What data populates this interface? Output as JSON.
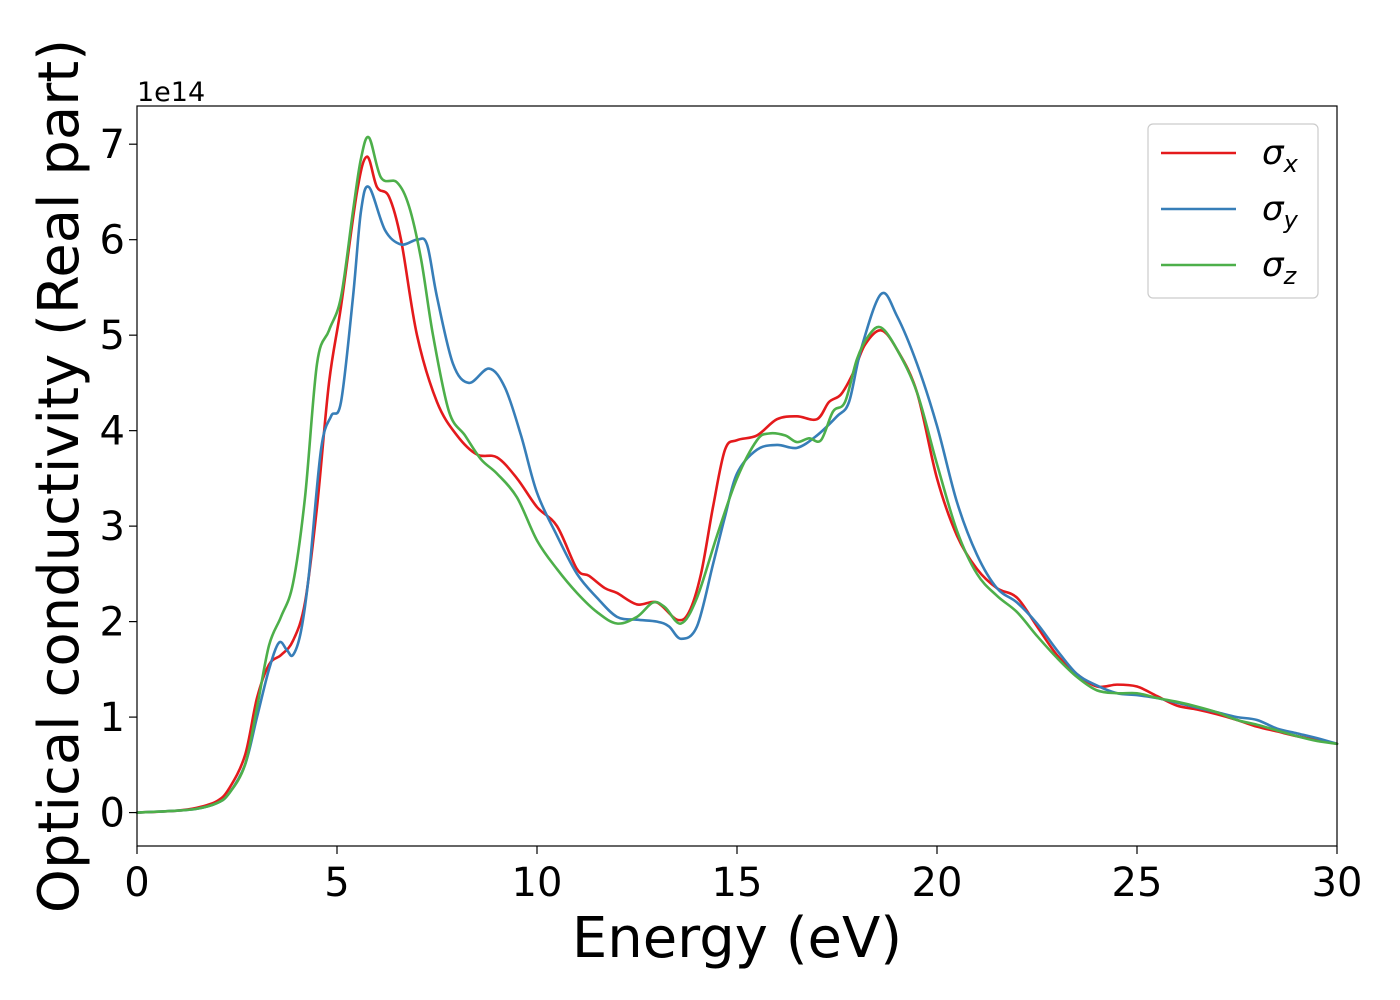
{
  "chart_data": {
    "type": "line",
    "xlabel": "Energy (eV)",
    "ylabel": "Optical conductivity (Real part)",
    "y_offset_label": "1e14",
    "xlim": [
      0,
      30
    ],
    "ylim": [
      -0.35,
      7.4
    ],
    "x_ticks": [
      0,
      5,
      10,
      15,
      20,
      25,
      30
    ],
    "y_ticks": [
      0,
      1,
      2,
      3,
      4,
      5,
      6,
      7
    ],
    "x_tick_labels": [
      "0",
      "5",
      "10",
      "15",
      "20",
      "25",
      "30"
    ],
    "y_tick_labels": [
      "0",
      "1",
      "2",
      "3",
      "4",
      "5",
      "6",
      "7"
    ],
    "grid": false,
    "legend_position": "top-right",
    "series": [
      {
        "name": "σx",
        "symbol": "σ",
        "subscript": "x",
        "color": "#e41a1c",
        "x": [
          0,
          1,
          1.5,
          2,
          2.3,
          2.7,
          3,
          3.3,
          3.6,
          3.9,
          4.2,
          4.5,
          4.8,
          5.1,
          5.5,
          5.75,
          6,
          6.3,
          6.6,
          7,
          7.5,
          8,
          8.5,
          9,
          9.5,
          10,
          10.5,
          11,
          11.3,
          11.7,
          12,
          12.5,
          13,
          13.5,
          13.8,
          14.1,
          14.4,
          14.7,
          15,
          15.5,
          16,
          16.5,
          17,
          17.3,
          17.6,
          17.9,
          18.2,
          18.6,
          19,
          19.5,
          20,
          20.5,
          21,
          21.5,
          22,
          22.5,
          23,
          23.5,
          24,
          24.5,
          25,
          25.5,
          26,
          26.5,
          27,
          27.5,
          28,
          28.5,
          29,
          29.5,
          30
        ],
        "y": [
          0,
          0.02,
          0.05,
          0.12,
          0.25,
          0.6,
          1.2,
          1.55,
          1.65,
          1.8,
          2.2,
          3.2,
          4.5,
          5.3,
          6.5,
          6.87,
          6.55,
          6.45,
          6.0,
          5.0,
          4.3,
          3.95,
          3.75,
          3.72,
          3.5,
          3.2,
          3.0,
          2.55,
          2.48,
          2.35,
          2.3,
          2.18,
          2.2,
          2.02,
          2.1,
          2.5,
          3.2,
          3.8,
          3.9,
          3.95,
          4.12,
          4.15,
          4.12,
          4.3,
          4.38,
          4.6,
          4.9,
          5.05,
          4.85,
          4.4,
          3.5,
          2.9,
          2.55,
          2.35,
          2.25,
          1.95,
          1.65,
          1.45,
          1.32,
          1.34,
          1.32,
          1.22,
          1.12,
          1.08,
          1.03,
          0.97,
          0.9,
          0.85,
          0.8,
          0.76,
          0.72
        ]
      },
      {
        "name": "σy",
        "symbol": "σ",
        "subscript": "y",
        "color": "#377eb8",
        "x": [
          0,
          1,
          1.5,
          2,
          2.3,
          2.7,
          3,
          3.3,
          3.55,
          3.75,
          3.9,
          4.1,
          4.3,
          4.6,
          4.85,
          5.1,
          5.4,
          5.6,
          5.8,
          6.2,
          6.6,
          7,
          7.25,
          7.5,
          7.9,
          8.3,
          8.8,
          9.2,
          9.6,
          10,
          10.5,
          11,
          11.5,
          12,
          12.5,
          13,
          13.3,
          13.6,
          14,
          14.4,
          14.7,
          15,
          15.5,
          16,
          16.5,
          17,
          17.5,
          17.8,
          18.1,
          18.6,
          19,
          19.5,
          20,
          20.5,
          21,
          21.5,
          22,
          22.5,
          23,
          23.5,
          24,
          24.5,
          25,
          25.5,
          26,
          26.5,
          27,
          27.5,
          28,
          28.5,
          29,
          29.5,
          30
        ],
        "y": [
          0,
          0.02,
          0.04,
          0.1,
          0.2,
          0.5,
          1.0,
          1.5,
          1.78,
          1.7,
          1.65,
          1.9,
          2.5,
          3.8,
          4.15,
          4.3,
          5.4,
          6.3,
          6.55,
          6.1,
          5.95,
          6.0,
          5.95,
          5.4,
          4.7,
          4.5,
          4.65,
          4.45,
          3.95,
          3.35,
          2.9,
          2.5,
          2.25,
          2.05,
          2.02,
          2.0,
          1.95,
          1.82,
          1.95,
          2.6,
          3.1,
          3.55,
          3.8,
          3.85,
          3.82,
          3.95,
          4.15,
          4.3,
          4.85,
          5.43,
          5.2,
          4.7,
          4.05,
          3.25,
          2.7,
          2.35,
          2.2,
          1.98,
          1.7,
          1.45,
          1.33,
          1.25,
          1.23,
          1.2,
          1.15,
          1.1,
          1.05,
          1.0,
          0.97,
          0.88,
          0.83,
          0.78,
          0.72
        ]
      },
      {
        "name": "σz",
        "symbol": "σ",
        "subscript": "z",
        "color": "#4daf4a",
        "x": [
          0,
          1,
          1.5,
          2,
          2.3,
          2.7,
          3,
          3.3,
          3.6,
          3.9,
          4.2,
          4.5,
          4.8,
          5.1,
          5.4,
          5.6,
          5.8,
          6.1,
          6.5,
          6.8,
          7.1,
          7.4,
          7.8,
          8.2,
          8.6,
          9,
          9.5,
          10,
          10.5,
          11,
          11.5,
          12,
          12.5,
          12.9,
          13.2,
          13.6,
          14,
          14.5,
          15,
          15.5,
          15.8,
          16.2,
          16.5,
          16.8,
          17.1,
          17.4,
          17.7,
          18,
          18.3,
          18.6,
          19,
          19.5,
          20,
          20.5,
          21,
          21.5,
          22,
          22.5,
          23,
          23.5,
          24,
          24.5,
          25,
          25.5,
          26,
          26.5,
          27,
          27.5,
          28,
          28.5,
          29,
          29.5,
          30
        ],
        "y": [
          0,
          0.02,
          0.04,
          0.1,
          0.2,
          0.5,
          1.1,
          1.75,
          2.05,
          2.4,
          3.3,
          4.7,
          5.05,
          5.4,
          6.3,
          6.85,
          7.07,
          6.65,
          6.6,
          6.35,
          5.8,
          5.0,
          4.2,
          3.95,
          3.7,
          3.55,
          3.3,
          2.85,
          2.55,
          2.3,
          2.1,
          1.98,
          2.05,
          2.2,
          2.15,
          1.98,
          2.25,
          2.9,
          3.5,
          3.9,
          3.97,
          3.95,
          3.88,
          3.92,
          3.9,
          4.2,
          4.3,
          4.75,
          5.0,
          5.08,
          4.85,
          4.4,
          3.65,
          2.95,
          2.5,
          2.27,
          2.1,
          1.85,
          1.62,
          1.42,
          1.28,
          1.25,
          1.25,
          1.2,
          1.16,
          1.11,
          1.05,
          0.97,
          0.92,
          0.86,
          0.8,
          0.75,
          0.72
        ]
      }
    ]
  }
}
